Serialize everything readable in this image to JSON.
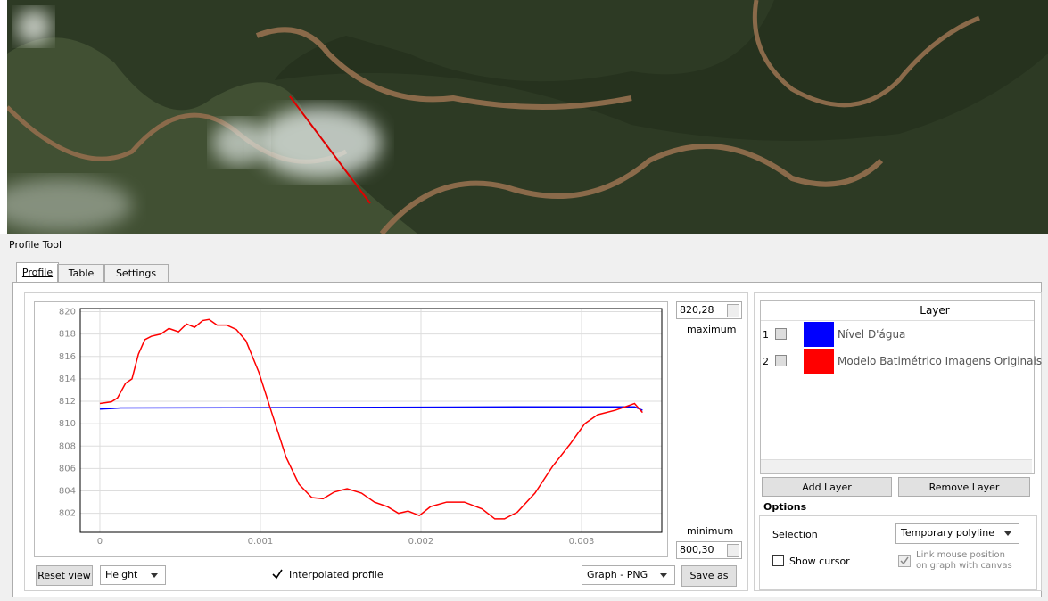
{
  "window": {
    "title": "Profile Tool",
    "tabs": [
      "Profile",
      "Table",
      "Settings"
    ]
  },
  "controls": {
    "max_value": "820,28",
    "max_label": "maximum",
    "min_label": "minimum",
    "min_value": "800,30",
    "reset_button": "Reset view",
    "plot_mode": "Height",
    "interpolated": "Interpolated profile",
    "export_format": "Graph - PNG",
    "save_button": "Save as"
  },
  "layers": {
    "header": "Layer",
    "row_numbers": [
      "1",
      "2"
    ],
    "add_button": "Add Layer",
    "remove_button": "Remove Layer"
  },
  "options": {
    "title": "Options",
    "selection_label": "Selection",
    "selection_value": "Temporary polyline",
    "show_cursor": "Show cursor",
    "link_mouse": "Link mouse position on graph with canvas"
  },
  "chart_data": {
    "type": "line",
    "xlim": [
      -0.000122,
      0.0035
    ],
    "ylim": [
      800.3,
      820.28
    ],
    "xticks": [
      0,
      0.001,
      0.002,
      0.003
    ],
    "yticks": [
      802,
      804,
      806,
      808,
      810,
      812,
      814,
      816,
      818,
      820
    ],
    "grid": true,
    "series": [
      {
        "name": "Nível D'água",
        "color": "#0000ff",
        "x": [
          0,
          0.00013,
          0.0026,
          0.00333,
          0.00338
        ],
        "values": [
          811.3,
          811.4,
          811.5,
          811.5,
          811.2
        ]
      },
      {
        "name": "Modelo Batimétrico Imagens Originais",
        "color": "#ff0000",
        "x": [
          0,
          7.2e-05,
          0.00011,
          0.00016,
          0.0002,
          0.00024,
          0.00028,
          0.00032,
          0.00038,
          0.00043,
          0.00049,
          0.00054,
          0.00059,
          0.00064,
          0.00068,
          0.00073,
          0.00079,
          0.00085,
          0.00091,
          0.00099,
          0.00107,
          0.00116,
          0.00124,
          0.00132,
          0.00139,
          0.00146,
          0.00154,
          0.00163,
          0.00171,
          0.00179,
          0.00186,
          0.00192,
          0.00199,
          0.00206,
          0.00216,
          0.00227,
          0.00238,
          0.00246,
          0.00252,
          0.0026,
          0.00271,
          0.00282,
          0.00293,
          0.00302,
          0.0031,
          0.00321,
          0.00329,
          0.00333,
          0.00338
        ],
        "values": [
          811.8,
          811.95,
          812.3,
          813.6,
          814.0,
          816.2,
          817.5,
          817.8,
          818.0,
          818.5,
          818.2,
          818.9,
          818.6,
          819.2,
          819.3,
          818.8,
          818.8,
          818.4,
          817.4,
          814.6,
          811.0,
          807.0,
          804.6,
          803.4,
          803.3,
          803.9,
          804.2,
          803.8,
          803.0,
          802.6,
          802.0,
          802.2,
          801.8,
          802.6,
          803.0,
          803.0,
          802.4,
          801.5,
          801.5,
          802.1,
          803.8,
          806.2,
          808.2,
          810.0,
          810.8,
          811.2,
          811.6,
          811.8,
          811.0
        ]
      }
    ]
  }
}
